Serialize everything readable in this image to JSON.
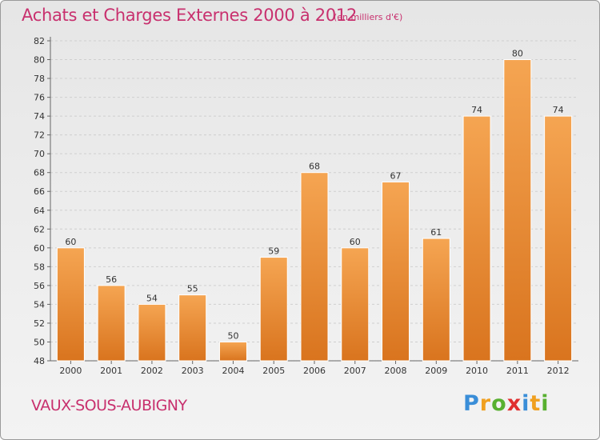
{
  "header": {
    "title": "Achats et Charges Externes 2000 à 2012",
    "subtitle": "(en milliers d'€)"
  },
  "footer": {
    "commune": "VAUX-SOUS-AUBIGNY",
    "logo": "Proxiti"
  },
  "colors": {
    "title": "#c8306e",
    "bar_light": "#f5a552",
    "bar_dark": "#d9741e",
    "background": "#eeeeee"
  },
  "chart_data": {
    "type": "bar",
    "title": "Achats et Charges Externes 2000 à 2012",
    "subtitle": "(en milliers d'€)",
    "categories": [
      "2000",
      "2001",
      "2002",
      "2003",
      "2004",
      "2005",
      "2006",
      "2007",
      "2008",
      "2009",
      "2010",
      "2011",
      "2012"
    ],
    "values": [
      60,
      56,
      54,
      55,
      50,
      59,
      68,
      60,
      67,
      61,
      74,
      80,
      74
    ],
    "xlabel": "",
    "ylabel": "",
    "ylim": [
      48,
      82
    ],
    "yticks": [
      48,
      50,
      52,
      54,
      56,
      58,
      60,
      62,
      64,
      66,
      68,
      70,
      72,
      74,
      76,
      78,
      80,
      82
    ],
    "grid": true,
    "legend": "none"
  }
}
